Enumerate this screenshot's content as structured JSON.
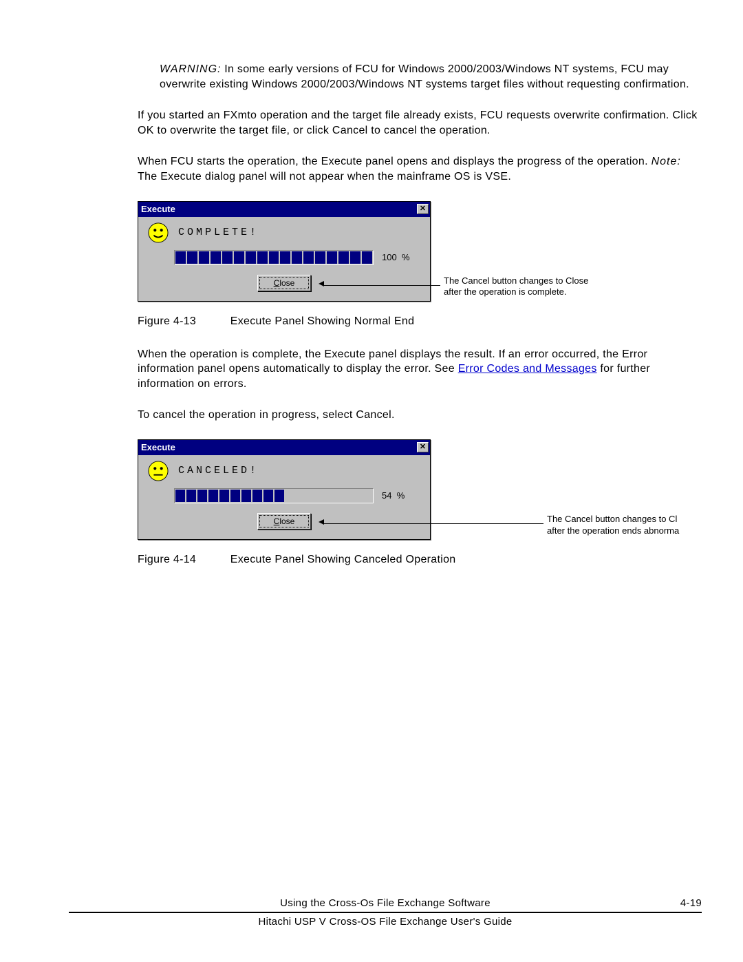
{
  "warning": {
    "label": "WARNING:",
    "text": " In some early versions of FCU for Windows 2000/2003/Windows NT systems, FCU may overwrite existing Windows 2000/2003/Windows NT systems target files without requesting confirmation."
  },
  "para1": "If you started an FXmto operation and the target file already exists, FCU requests overwrite confirmation. Click OK to overwrite the target file, or click Cancel to cancel the operation.",
  "para2_a": "When FCU starts the operation, the Execute panel opens and displays the progress of the operation. ",
  "para2_note_label": "Note:",
  "para2_b": " The Execute dialog panel will not appear when the mainframe OS is VSE.",
  "panel1": {
    "title": "Execute",
    "status": "COMPLETE!",
    "percent": "100",
    "pct_suffix": "%",
    "button": "Close",
    "segments_total": 17,
    "segments_filled": 17,
    "face": "smile",
    "callout_l1": "The Cancel button changes to Close",
    "callout_l2": "after the operation is complete."
  },
  "fig1": {
    "num": "Figure 4-13",
    "title": "Execute Panel Showing Normal End"
  },
  "para3_a": "When the operation is complete, the Execute panel displays the result. If an error occurred, the Error information panel opens automatically to display the error. See ",
  "para3_link": "Error Codes and Messages",
  "para3_b": " for further information on errors.",
  "para4": "To cancel the operation in progress, select Cancel.",
  "panel2": {
    "title": "Execute",
    "status": "CANCELED!",
    "percent": "54",
    "pct_suffix": "%",
    "button": "Close",
    "segments_total": 18,
    "segments_filled": 10,
    "face": "neutral",
    "callout_l1": "The Cancel button changes to Cl",
    "callout_l2": "after the operation ends abnorma"
  },
  "fig2": {
    "num": "Figure 4-14",
    "title": "Execute Panel Showing Canceled Operation"
  },
  "footer": {
    "center": "Using the Cross-Os File Exchange Software",
    "right": "4-19",
    "sub": "Hitachi USP V Cross-OS File Exchange User's Guide"
  },
  "close_x": "✕"
}
